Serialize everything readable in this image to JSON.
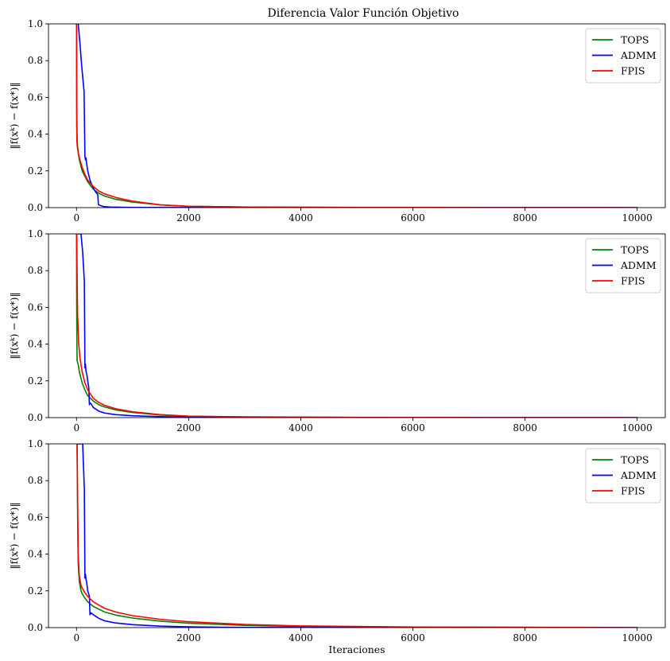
{
  "figure": {
    "title": "Diferencia Valor Función Objetivo"
  },
  "chart_data": [
    {
      "type": "line",
      "title": "Diferencia Valor Función Objetivo",
      "xlabel": "",
      "ylabel": "‖f(xᵏ) − f(x*)‖",
      "xlim": [
        -500,
        10500
      ],
      "ylim": [
        0,
        1
      ],
      "xticks": [
        0,
        2000,
        4000,
        6000,
        8000,
        10000
      ],
      "yticks": [
        0.0,
        0.2,
        0.4,
        0.6,
        0.8,
        1.0
      ],
      "ytick_labels": [
        "0.0",
        "0.2",
        "0.4",
        "0.6",
        "0.8",
        "1.0"
      ],
      "grid": false,
      "legend_position": "top-right",
      "series": [
        {
          "name": "TOPS",
          "color": "#008000",
          "x": [
            0,
            5,
            10,
            15,
            20,
            30,
            50,
            100,
            200,
            300,
            400,
            500,
            700,
            1000,
            1500,
            2000,
            3000,
            5000,
            10000
          ],
          "y": [
            1.0,
            0.55,
            0.4,
            0.35,
            0.33,
            0.3,
            0.26,
            0.2,
            0.14,
            0.1,
            0.078,
            0.063,
            0.045,
            0.03,
            0.015,
            0.007,
            0.003,
            0.001,
            0.0
          ]
        },
        {
          "name": "ADMM",
          "color": "#0000ff",
          "x": [
            0,
            10,
            30,
            60,
            90,
            120,
            135,
            150,
            160,
            170,
            180,
            200,
            240,
            280,
            320,
            350,
            370,
            380,
            390,
            420,
            480,
            600,
            1000,
            10000
          ],
          "y": [
            1.0,
            1.0,
            1.0,
            0.9,
            0.78,
            0.68,
            0.63,
            0.28,
            0.26,
            0.27,
            0.24,
            0.2,
            0.15,
            0.12,
            0.095,
            0.082,
            0.075,
            0.07,
            0.016,
            0.012,
            0.006,
            0.003,
            0.001,
            0.0
          ]
        },
        {
          "name": "FPIS",
          "color": "#ff0000",
          "x": [
            0,
            3,
            8,
            15,
            30,
            60,
            100,
            150,
            200,
            300,
            400,
            500,
            700,
            1000,
            1500,
            2000,
            3000,
            5000,
            10000
          ],
          "y": [
            1.0,
            0.45,
            0.36,
            0.33,
            0.3,
            0.26,
            0.22,
            0.18,
            0.15,
            0.115,
            0.09,
            0.075,
            0.055,
            0.035,
            0.015,
            0.007,
            0.003,
            0.001,
            0.0
          ]
        }
      ]
    },
    {
      "type": "line",
      "title": "",
      "xlabel": "",
      "ylabel": "‖f(xᵏ) − f(x*)‖",
      "xlim": [
        -500,
        10500
      ],
      "ylim": [
        0,
        1
      ],
      "xticks": [
        0,
        2000,
        4000,
        6000,
        8000,
        10000
      ],
      "yticks": [
        0.0,
        0.2,
        0.4,
        0.6,
        0.8,
        1.0
      ],
      "ytick_labels": [
        "0.0",
        "0.2",
        "0.4",
        "0.6",
        "0.8",
        "1.0"
      ],
      "grid": false,
      "legend_position": "top-right",
      "series": [
        {
          "name": "TOPS",
          "color": "#008000",
          "x": [
            0,
            5,
            10,
            20,
            30,
            50,
            100,
            150,
            200,
            300,
            400,
            500,
            700,
            1000,
            1500,
            2000,
            3000,
            5000,
            10000
          ],
          "y": [
            1.0,
            0.5,
            0.31,
            0.3,
            0.29,
            0.25,
            0.19,
            0.15,
            0.12,
            0.09,
            0.07,
            0.058,
            0.042,
            0.028,
            0.014,
            0.007,
            0.003,
            0.001,
            0.0
          ]
        },
        {
          "name": "ADMM",
          "color": "#0000ff",
          "x": [
            0,
            20,
            50,
            80,
            110,
            140,
            150,
            160,
            170,
            180,
            200,
            220,
            230,
            240,
            260,
            300,
            400,
            500,
            700,
            1000,
            1500,
            2000,
            10000
          ],
          "y": [
            1.0,
            1.0,
            1.0,
            1.0,
            0.9,
            0.74,
            0.27,
            0.29,
            0.25,
            0.24,
            0.2,
            0.16,
            0.07,
            0.08,
            0.075,
            0.055,
            0.035,
            0.025,
            0.016,
            0.01,
            0.005,
            0.002,
            0.0
          ]
        },
        {
          "name": "FPIS",
          "color": "#ff0000",
          "x": [
            0,
            5,
            10,
            20,
            40,
            60,
            100,
            150,
            200,
            300,
            400,
            500,
            700,
            1000,
            1500,
            2000,
            3000,
            5000,
            10000
          ],
          "y": [
            1.0,
            1.0,
            0.8,
            0.55,
            0.4,
            0.33,
            0.25,
            0.19,
            0.15,
            0.105,
            0.082,
            0.067,
            0.048,
            0.032,
            0.016,
            0.008,
            0.004,
            0.001,
            0.0
          ]
        }
      ]
    },
    {
      "type": "line",
      "title": "",
      "xlabel": "Iteraciones",
      "ylabel": "‖f(xᵏ) − f(x*)‖",
      "xlim": [
        -500,
        10500
      ],
      "ylim": [
        0,
        1
      ],
      "xticks": [
        0,
        2000,
        4000,
        6000,
        8000,
        10000
      ],
      "yticks": [
        0.0,
        0.2,
        0.4,
        0.6,
        0.8,
        1.0
      ],
      "ytick_labels": [
        "0.0",
        "0.2",
        "0.4",
        "0.6",
        "0.8",
        "1.0"
      ],
      "grid": false,
      "legend_position": "top-right",
      "series": [
        {
          "name": "TOPS",
          "color": "#008000",
          "x": [
            0,
            10,
            20,
            30,
            50,
            80,
            100,
            150,
            200,
            300,
            500,
            700,
            1000,
            1500,
            2000,
            3000,
            4000,
            6000,
            10000
          ],
          "y": [
            1.0,
            1.0,
            0.6,
            0.35,
            0.25,
            0.2,
            0.185,
            0.16,
            0.14,
            0.115,
            0.085,
            0.068,
            0.052,
            0.035,
            0.024,
            0.012,
            0.006,
            0.002,
            0.0
          ]
        },
        {
          "name": "ADMM",
          "color": "#0000ff",
          "x": [
            0,
            50,
            80,
            110,
            140,
            150,
            160,
            170,
            180,
            200,
            230,
            240,
            260,
            300,
            400,
            500,
            700,
            1000,
            1500,
            2000,
            3000,
            10000
          ],
          "y": [
            1.0,
            1.0,
            1.0,
            1.0,
            0.75,
            0.27,
            0.29,
            0.26,
            0.25,
            0.2,
            0.17,
            0.07,
            0.08,
            0.07,
            0.05,
            0.037,
            0.025,
            0.016,
            0.008,
            0.004,
            0.001,
            0.0
          ]
        },
        {
          "name": "FPIS",
          "color": "#ff0000",
          "x": [
            0,
            10,
            20,
            30,
            50,
            80,
            100,
            150,
            200,
            300,
            500,
            700,
            1000,
            1500,
            2000,
            3000,
            4000,
            6000,
            10000
          ],
          "y": [
            1.0,
            1.0,
            0.7,
            0.4,
            0.28,
            0.23,
            0.215,
            0.19,
            0.17,
            0.14,
            0.105,
            0.085,
            0.065,
            0.045,
            0.032,
            0.017,
            0.009,
            0.003,
            0.0
          ]
        }
      ]
    }
  ]
}
